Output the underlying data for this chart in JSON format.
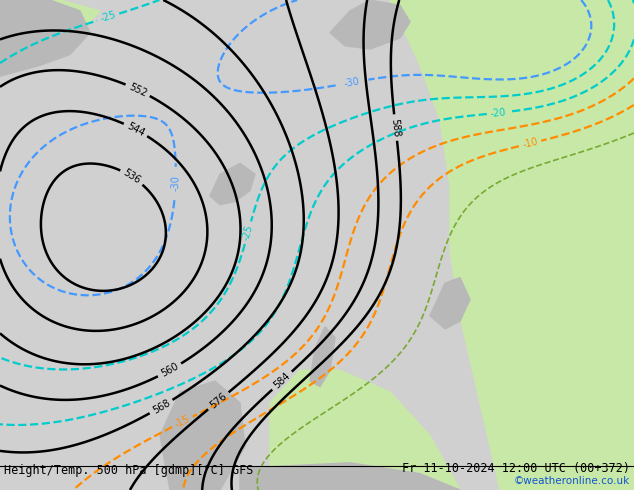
{
  "title_left": "Height/Temp. 500 hPa [gdmp][°C] GFS",
  "title_right": "Fr 11-10-2024 12:00 UTC (00+372)",
  "watermark": "©weatheronline.co.uk",
  "bg_light_gray": "#d0d0d0",
  "land_green": "#c8e8a8",
  "land_gray": "#b8b8b8",
  "height_color": "#000000",
  "temp_orange": "#ff8c00",
  "temp_cyan": "#00cccc",
  "temp_blue": "#4499ff",
  "temp_green": "#77aa33",
  "label_fontsize": 7,
  "title_fontsize": 8.5,
  "watermark_fontsize": 7.5
}
